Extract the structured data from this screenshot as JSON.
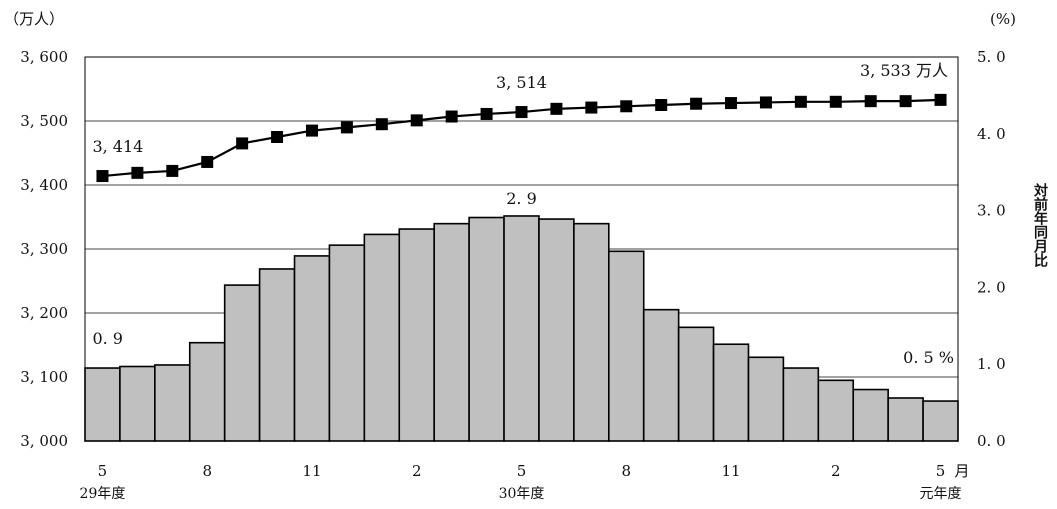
{
  "chart_data": {
    "type": "bar+line",
    "left_axis": {
      "unit_label": "（万人）",
      "ylim": [
        3000,
        3600
      ],
      "ticks": [
        3000,
        3100,
        3200,
        3300,
        3400,
        3500,
        3600
      ],
      "tick_labels": [
        "3, 000",
        "3, 100",
        "3, 200",
        "3, 300",
        "3, 400",
        "3, 500",
        "3, 600"
      ]
    },
    "right_axis": {
      "unit_label": "(%)",
      "ylim": [
        0,
        5
      ],
      "ticks": [
        0,
        1,
        2,
        3,
        4,
        5
      ],
      "tick_labels": [
        "0. 0",
        "1. 0",
        "2. 0",
        "3. 0",
        "4. 0",
        "5. 0"
      ],
      "side_label": "対前年同月比"
    },
    "x_ticks": [
      {
        "index": 0,
        "label": "5"
      },
      {
        "index": 3,
        "label": "8"
      },
      {
        "index": 6,
        "label": "11"
      },
      {
        "index": 9,
        "label": "2"
      },
      {
        "index": 12,
        "label": "5"
      },
      {
        "index": 15,
        "label": "8"
      },
      {
        "index": 18,
        "label": "11"
      },
      {
        "index": 21,
        "label": "2"
      },
      {
        "index": 24,
        "label": "5"
      }
    ],
    "x_unit_label": "月",
    "era_labels": [
      {
        "index": 0,
        "label": "29年度"
      },
      {
        "index": 12,
        "label": "30年度"
      },
      {
        "index": 24,
        "label": "元年度"
      }
    ],
    "series": [
      {
        "type": "bar",
        "axis": "right",
        "values": [
          0.95,
          0.97,
          0.99,
          1.28,
          2.03,
          2.24,
          2.41,
          2.55,
          2.69,
          2.76,
          2.83,
          2.91,
          2.93,
          2.89,
          2.83,
          2.47,
          1.71,
          1.48,
          1.26,
          1.09,
          0.95,
          0.79,
          0.67,
          0.56,
          0.52
        ],
        "color": "#c0c0c0"
      },
      {
        "type": "line",
        "axis": "left",
        "values": [
          3414,
          3419,
          3422,
          3436,
          3465,
          3475,
          3485,
          3490,
          3495,
          3501,
          3507,
          3511,
          3514,
          3519,
          3521,
          3523,
          3525,
          3527,
          3528,
          3529,
          3530,
          3530,
          3531,
          3531,
          3533
        ],
        "color": "#000000"
      }
    ],
    "annotations": {
      "line_first": "3, 414",
      "line_mid": "3, 514",
      "line_last": "3, 533 万人",
      "bar_first": "0. 9",
      "bar_peak": "2. 9",
      "bar_last": "0. 5 %"
    },
    "grid": true
  }
}
